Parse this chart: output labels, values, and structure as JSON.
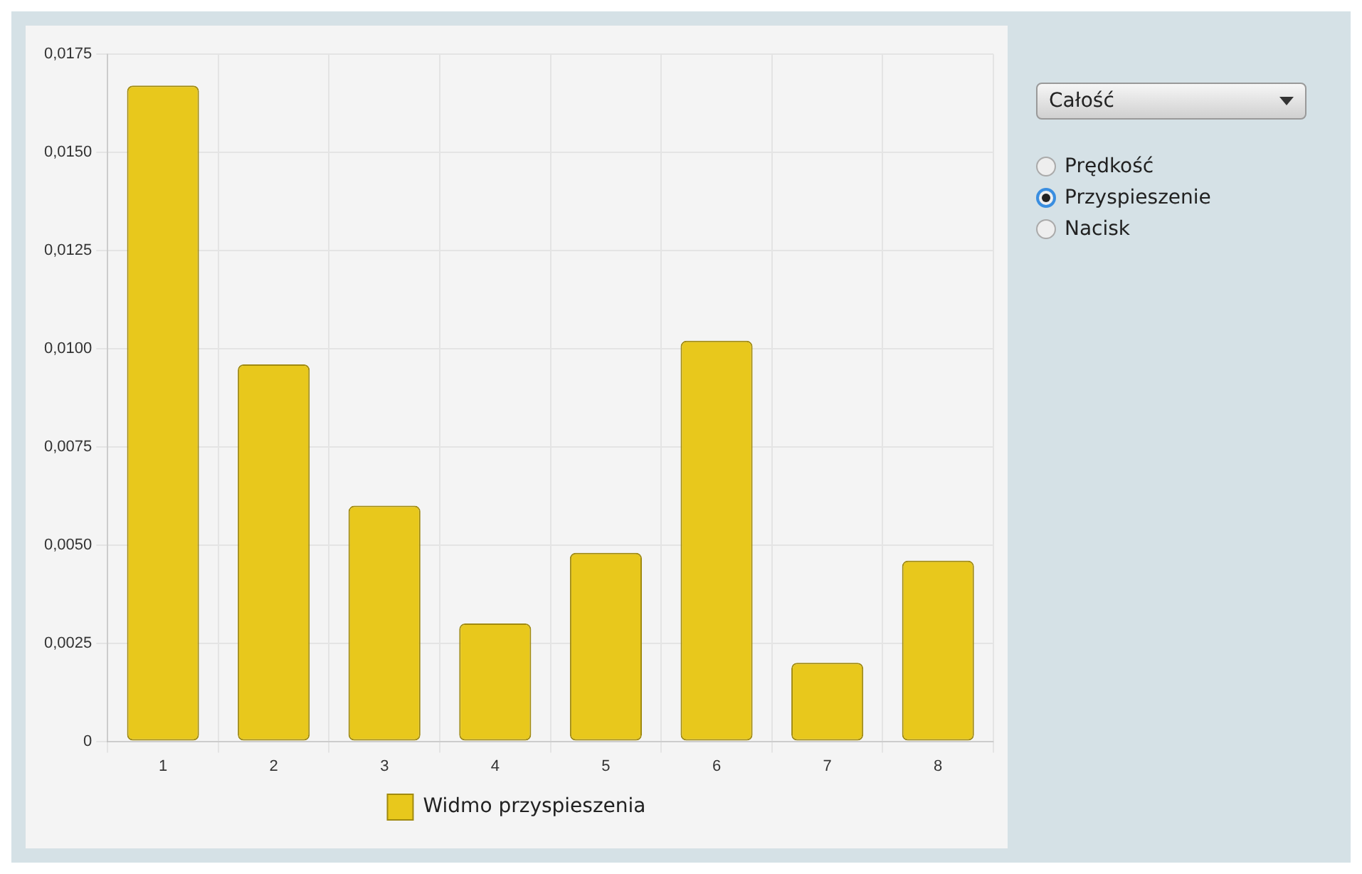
{
  "chart_data": {
    "type": "bar",
    "categories": [
      "1",
      "2",
      "3",
      "4",
      "5",
      "6",
      "7",
      "8"
    ],
    "series": [
      {
        "name": "Widmo przyspieszenia",
        "color": "#e8c81c",
        "values": [
          0.0167,
          0.0096,
          0.006,
          0.003,
          0.0048,
          0.0102,
          0.002,
          0.0046
        ]
      }
    ],
    "ylim": [
      0,
      0.0175
    ],
    "yticks": [
      {
        "value": 0,
        "label": "0"
      },
      {
        "value": 0.0025,
        "label": "0,0025"
      },
      {
        "value": 0.005,
        "label": "0,0050"
      },
      {
        "value": 0.0075,
        "label": "0,0075"
      },
      {
        "value": 0.01,
        "label": "0,0100"
      },
      {
        "value": 0.0125,
        "label": "0,0125"
      },
      {
        "value": 0.015,
        "label": "0,0150"
      },
      {
        "value": 0.0175,
        "label": "0,0175"
      }
    ],
    "grid": true,
    "legend": "bottom",
    "annotations": [
      "Całość",
      "Prędkość",
      "Przyspieszenie",
      "Nacisk"
    ]
  }
}
